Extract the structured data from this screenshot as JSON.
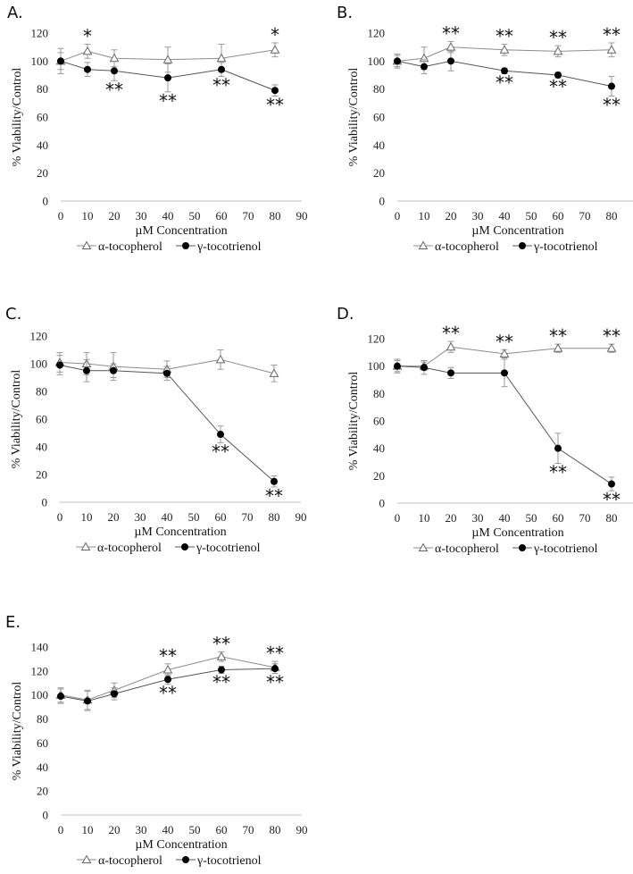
{
  "chart_data": [
    {
      "type": "line",
      "panel_label": "A.",
      "xlabel": "µM Concentration",
      "ylabel": "% Viability/Control",
      "xlim": [
        0,
        90
      ],
      "xticks": [
        0,
        10,
        20,
        30,
        40,
        50,
        60,
        70,
        80,
        90
      ],
      "ylim": [
        0,
        120
      ],
      "yticks": [
        0,
        20,
        40,
        60,
        80,
        100,
        120
      ],
      "x": [
        0,
        10,
        20,
        40,
        60,
        80
      ],
      "series": [
        {
          "name": "α-tocopherol",
          "marker": "open-triangle",
          "values": [
            100,
            107,
            102,
            101,
            102,
            108
          ],
          "errors": [
            9,
            5,
            6,
            9,
            10,
            5
          ],
          "sig": [
            "",
            "*",
            "",
            "",
            "",
            "*"
          ]
        },
        {
          "name": "γ-tocotrienol",
          "marker": "filled-circle",
          "values": [
            100,
            94,
            93,
            88,
            94,
            79
          ],
          "errors": [
            6,
            5,
            7,
            10,
            5,
            4
          ],
          "sig": [
            "",
            "",
            "**",
            "**",
            "**",
            "**"
          ]
        }
      ]
    },
    {
      "type": "line",
      "panel_label": "B.",
      "xlabel": "µM Concentration",
      "ylabel": "% Viability/Control",
      "xlim": [
        0,
        90
      ],
      "xticks": [
        0,
        10,
        20,
        30,
        40,
        50,
        60,
        70,
        80,
        90
      ],
      "ylim": [
        0,
        120
      ],
      "yticks": [
        0,
        20,
        40,
        60,
        80,
        100,
        120
      ],
      "x": [
        0,
        10,
        20,
        40,
        60,
        80
      ],
      "series": [
        {
          "name": "α-tocopherol",
          "marker": "open-triangle",
          "values": [
            100,
            102,
            110,
            108,
            107,
            108
          ],
          "errors": [
            5,
            8,
            4,
            4,
            4,
            5
          ],
          "sig": [
            "",
            "",
            "**",
            "**",
            "**",
            "**"
          ]
        },
        {
          "name": "γ-tocotrienol",
          "marker": "filled-circle",
          "values": [
            100,
            96,
            100,
            93,
            90,
            82
          ],
          "errors": [
            4,
            5,
            7,
            2,
            2,
            7
          ],
          "sig": [
            "",
            "",
            "",
            "**",
            "**",
            "**"
          ]
        }
      ]
    },
    {
      "type": "line",
      "panel_label": "C.",
      "xlabel": "µM Concentration",
      "ylabel": "% Viability/Control",
      "xlim": [
        0,
        90
      ],
      "xticks": [
        0,
        10,
        20,
        30,
        40,
        50,
        60,
        70,
        80,
        90
      ],
      "ylim": [
        0,
        120
      ],
      "yticks": [
        0,
        20,
        40,
        60,
        80,
        100,
        120
      ],
      "x": [
        0,
        10,
        20,
        40,
        60,
        80
      ],
      "series": [
        {
          "name": "α-tocopherol",
          "marker": "open-triangle",
          "values": [
            101,
            100,
            98,
            96,
            103,
            93
          ],
          "errors": [
            7,
            8,
            10,
            6,
            7,
            6
          ],
          "sig": [
            "",
            "",
            "",
            "",
            "",
            ""
          ]
        },
        {
          "name": "γ-tocotrienol",
          "marker": "filled-circle",
          "values": [
            99,
            95,
            95,
            93,
            49,
            15
          ],
          "errors": [
            7,
            8,
            5,
            5,
            6,
            4
          ],
          "sig": [
            "",
            "",
            "",
            "",
            "**",
            "**"
          ]
        }
      ]
    },
    {
      "type": "line",
      "panel_label": "D.",
      "xlabel": "µM Concentration",
      "ylabel": "% Viability/Control",
      "xlim": [
        0,
        90
      ],
      "xticks": [
        0,
        10,
        20,
        30,
        40,
        50,
        60,
        70,
        80,
        90
      ],
      "ylim": [
        0,
        120
      ],
      "yticks": [
        0,
        20,
        40,
        60,
        80,
        100,
        120
      ],
      "x": [
        0,
        10,
        20,
        40,
        60,
        80
      ],
      "series": [
        {
          "name": "α-tocopherol",
          "marker": "open-triangle",
          "values": [
            100,
            100,
            114,
            109,
            113,
            113
          ],
          "errors": [
            5,
            3,
            4,
            3,
            3,
            3
          ],
          "sig": [
            "",
            "",
            "**",
            "**",
            "**",
            "**"
          ]
        },
        {
          "name": "γ-tocotrienol",
          "marker": "filled-circle",
          "values": [
            100,
            99,
            95,
            95,
            40,
            14
          ],
          "errors": [
            4,
            5,
            4,
            10,
            11,
            5
          ],
          "sig": [
            "",
            "",
            "",
            "",
            "**",
            "**"
          ]
        }
      ]
    },
    {
      "type": "line",
      "panel_label": "E.",
      "xlabel": "µM Concentration",
      "ylabel": "% Viability/Control",
      "xlim": [
        0,
        90
      ],
      "xticks": [
        0,
        10,
        20,
        30,
        40,
        50,
        60,
        70,
        80,
        90
      ],
      "ylim": [
        0,
        140
      ],
      "yticks": [
        0,
        20,
        40,
        60,
        80,
        100,
        120,
        140
      ],
      "x": [
        0,
        10,
        20,
        40,
        60,
        80
      ],
      "series": [
        {
          "name": "α-tocopherol",
          "marker": "open-triangle",
          "values": [
            100,
            96,
            104,
            121,
            132,
            123
          ],
          "errors": [
            6,
            8,
            6,
            5,
            4,
            5
          ],
          "sig": [
            "",
            "",
            "",
            "**",
            "**",
            "**"
          ]
        },
        {
          "name": "γ-tocotrienol",
          "marker": "filled-circle",
          "values": [
            99,
            95,
            101,
            113,
            121,
            122
          ],
          "errors": [
            6,
            8,
            5,
            4,
            3,
            4
          ],
          "sig": [
            "",
            "",
            "",
            "**",
            "**",
            "**"
          ]
        }
      ]
    }
  ]
}
